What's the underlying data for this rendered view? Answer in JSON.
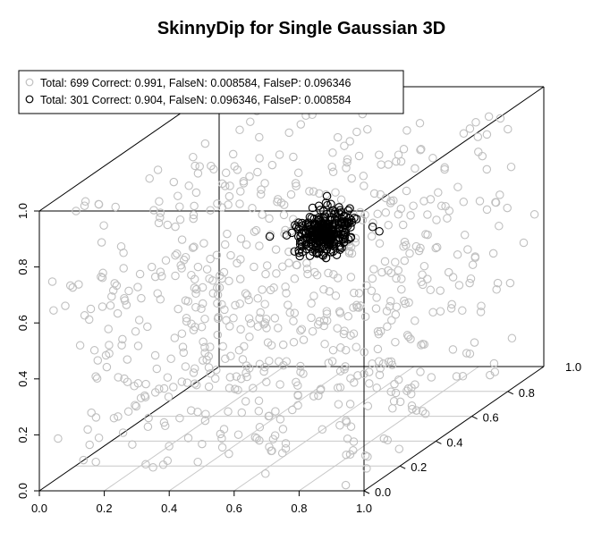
{
  "chart_data": {
    "type": "scatter",
    "title": "SkinnyDip for Single Gaussian 3D",
    "xlim": [
      0,
      1
    ],
    "ylim": [
      0,
      1
    ],
    "zlim": [
      0,
      1
    ],
    "x_ticks": [
      "0.0",
      "0.2",
      "0.4",
      "0.6",
      "0.8",
      "1.0"
    ],
    "y_ticks": [
      "0.0",
      "0.2",
      "0.4",
      "0.6",
      "0.8"
    ],
    "y_end_label": "1.0",
    "z_ticks": [
      "0.0",
      "0.2",
      "0.4",
      "0.6",
      "0.8",
      "1.0"
    ],
    "grid": "floor",
    "legend_position": "top-left",
    "series": [
      {
        "name": "Total: 699 Correct: 0.991, FalseN: 0.008584, FalseP: 0.096346",
        "distribution": "uniform",
        "count": 699,
        "color": "#c0c0c0"
      },
      {
        "name": "Total: 301 Correct: 0.904, FalseN: 0.096346, FalseP: 0.008584",
        "distribution": "gaussian",
        "count": 301,
        "center": [
          0.6,
          0.5,
          0.7
        ],
        "sd": 0.04,
        "color": "#000000"
      }
    ]
  }
}
